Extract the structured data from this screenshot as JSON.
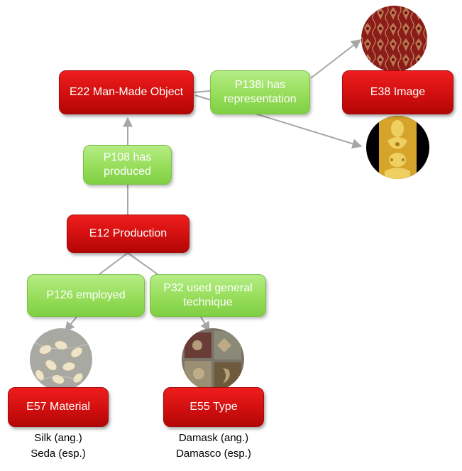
{
  "nodes": {
    "man_made_object": "E22 Man-Made Object",
    "has_representation": "P138i has representation",
    "image": "E38 Image",
    "has_produced": "P108 has produced",
    "production": "E12 Production",
    "employed": "P126 employed",
    "used_general_technique": "P32 used general technique",
    "material": "E57 Material",
    "type": "E55 Type"
  },
  "captions": {
    "material_line1": "Silk (ang.)",
    "material_line2": "Seda (esp.)",
    "type_line1": "Damask (ang.)",
    "type_line2": "Damasco (esp.)"
  },
  "colors": {
    "class_node": "#d10f0f",
    "property_node": "#97dd5a",
    "connector": "#a6a6a6"
  },
  "images": {
    "representation_1": "red damask fabric",
    "representation_2": "gold damask fabric",
    "material": "silk cocoons",
    "type": "damask samples"
  }
}
